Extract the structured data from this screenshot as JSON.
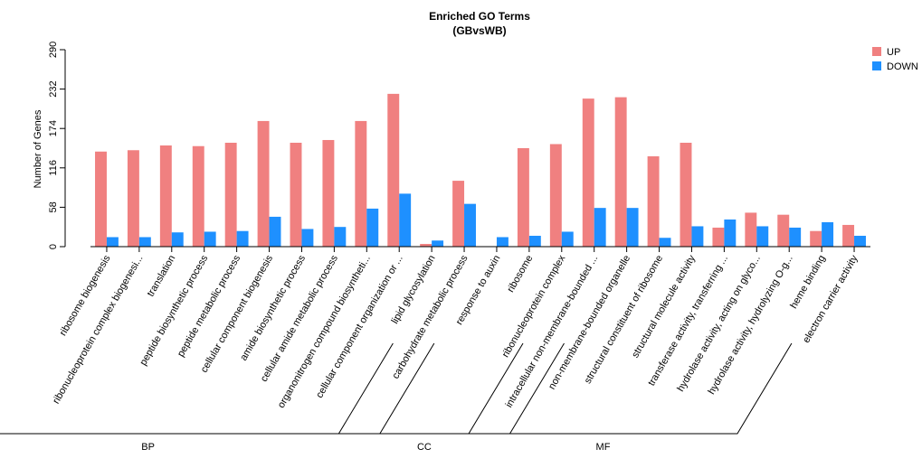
{
  "chart_data": {
    "type": "bar",
    "title": "Enriched GO Terms",
    "subtitle": "(GBvsWB)",
    "ylabel": "Number of Genes",
    "xlabel": "",
    "ylim": [
      0,
      290
    ],
    "yticks": [
      "0",
      "58",
      "116",
      "174",
      "232",
      "290"
    ],
    "grid": false,
    "legend_position": "top-right",
    "categories": [
      "ribosome biogenesis",
      "ribonucleoprotein complex biogenesi...",
      "translation",
      "peptide biosynthetic process",
      "peptide metabolic process",
      "cellular component biogenesis",
      "amide biosynthetic process",
      "cellular amide metabolic process",
      "organonitrogen compound biosyntheti...",
      "cellular component organization or ...",
      "lipid glycosylation",
      "carbohydrate metabolic process",
      "response to auxin",
      "ribosome",
      "ribonucleoprotein complex",
      "intracellular non-membrane-bounded ...",
      "non-membrane-bounded organelle",
      "structural constituent of ribosome",
      "structural molecule activity",
      "transferase activity, transferring ...",
      "hydrolase activity, acting on glyco...",
      "hydrolase activity, hydrolyzing O-g...",
      "heme binding",
      "electron carrier activity"
    ],
    "series": [
      {
        "name": "UP",
        "color": "#F08080",
        "values": [
          140,
          142,
          149,
          148,
          153,
          185,
          153,
          157,
          185,
          225,
          4,
          97,
          0,
          145,
          151,
          218,
          220,
          133,
          153,
          28,
          50,
          47,
          23,
          32
        ]
      },
      {
        "name": "DOWN",
        "color": "#1E90FF",
        "values": [
          14,
          14,
          21,
          22,
          23,
          44,
          26,
          29,
          56,
          78,
          9,
          63,
          14,
          16,
          22,
          57,
          57,
          13,
          30,
          40,
          30,
          28,
          36,
          16
        ]
      }
    ],
    "groups": [
      {
        "label": "BP",
        "start": 0,
        "end": 12
      },
      {
        "label": "CC",
        "start": 13,
        "end": 16
      },
      {
        "label": "MF",
        "start": 17,
        "end": 23
      }
    ]
  }
}
